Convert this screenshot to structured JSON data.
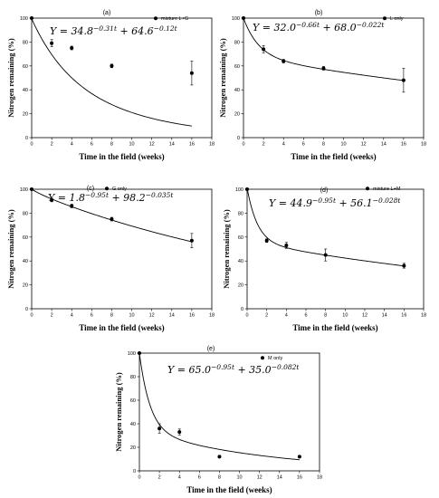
{
  "chart_data": [
    {
      "type": "scatter",
      "label": "(a)",
      "legend": "mixture L+G",
      "equation": {
        "lhs": "Y = 34.8",
        "exp1": "−0.31t",
        "mid": " + 64.6",
        "exp2": "−0.12t"
      },
      "model": {
        "a": 34.8,
        "b": 0.31,
        "c": 64.6,
        "d": 0.12
      },
      "xlabel": "Time in the field (weeks)",
      "ylabel": "Nitrogen remaining (%)",
      "xlim": [
        0,
        18
      ],
      "ylim": [
        0,
        100
      ],
      "xticks": [
        0,
        2,
        4,
        6,
        8,
        10,
        12,
        14,
        16,
        18
      ],
      "yticks": [
        0,
        20,
        40,
        60,
        80,
        100
      ],
      "points": [
        {
          "x": 0,
          "y": 100,
          "err": 0
        },
        {
          "x": 2,
          "y": 79,
          "err": 3
        },
        {
          "x": 4,
          "y": 75,
          "err": 1.5
        },
        {
          "x": 8,
          "y": 60,
          "err": 1.5
        },
        {
          "x": 16,
          "y": 54,
          "err": 10
        }
      ]
    },
    {
      "type": "scatter",
      "label": "(b)",
      "legend": "L only",
      "equation": {
        "lhs": "Y = 32.0",
        "exp1": "−0.66t",
        "mid": " + 68.0",
        "exp2": "−0.022t"
      },
      "model": {
        "a": 32.0,
        "b": 0.66,
        "c": 68.0,
        "d": 0.022
      },
      "xlabel": "Time in the field (weeks)",
      "ylabel": "Nitrogen remaining (%)",
      "xlim": [
        0,
        18
      ],
      "ylim": [
        0,
        100
      ],
      "xticks": [
        0,
        2,
        4,
        6,
        8,
        10,
        12,
        14,
        16,
        18
      ],
      "yticks": [
        0,
        20,
        40,
        60,
        80,
        100
      ],
      "points": [
        {
          "x": 0,
          "y": 100,
          "err": 0
        },
        {
          "x": 2,
          "y": 74,
          "err": 3
        },
        {
          "x": 4,
          "y": 64,
          "err": 1.5
        },
        {
          "x": 8,
          "y": 58,
          "err": 1.5
        },
        {
          "x": 16,
          "y": 48,
          "err": 10
        }
      ]
    },
    {
      "type": "scatter",
      "label": "(c)",
      "legend": "G only",
      "equation": {
        "lhs": "Y = 1.8",
        "exp1": "−0.95t",
        "mid": " + 98.2",
        "exp2": "−0.035t"
      },
      "model": {
        "a": 1.8,
        "b": 0.95,
        "c": 98.2,
        "d": 0.035
      },
      "xlabel": "Time in the field (weeks)",
      "ylabel": "Nitrogen remaining (%)",
      "xlim": [
        0,
        18
      ],
      "ylim": [
        0,
        100
      ],
      "xticks": [
        0,
        2,
        4,
        6,
        8,
        10,
        12,
        14,
        16,
        18
      ],
      "yticks": [
        0,
        20,
        40,
        60,
        80,
        100
      ],
      "points": [
        {
          "x": 0,
          "y": 100,
          "err": 0
        },
        {
          "x": 2,
          "y": 91,
          "err": 1.5
        },
        {
          "x": 4,
          "y": 86,
          "err": 1.5
        },
        {
          "x": 8,
          "y": 75,
          "err": 1.5
        },
        {
          "x": 16,
          "y": 57,
          "err": 6
        }
      ]
    },
    {
      "type": "scatter",
      "label": "(d)",
      "legend": "mixture L+M",
      "equation": {
        "lhs": "Y = 44.9",
        "exp1": "−0.95t",
        "mid": " + 56.1",
        "exp2": "−0.028t"
      },
      "model": {
        "a": 44.9,
        "b": 0.95,
        "c": 56.1,
        "d": 0.028
      },
      "xlabel": "Time in the field (weeks)",
      "ylabel": "Nitrogen remaining (%)",
      "xlim": [
        0,
        18
      ],
      "ylim": [
        0,
        100
      ],
      "xticks": [
        0,
        2,
        4,
        6,
        8,
        10,
        12,
        14,
        16,
        18
      ],
      "yticks": [
        0,
        20,
        40,
        60,
        80,
        100
      ],
      "points": [
        {
          "x": 0,
          "y": 100,
          "err": 0
        },
        {
          "x": 2,
          "y": 57,
          "err": 1.5
        },
        {
          "x": 4,
          "y": 53,
          "err": 2.5
        },
        {
          "x": 8,
          "y": 45,
          "err": 5
        },
        {
          "x": 16,
          "y": 36,
          "err": 2
        }
      ]
    },
    {
      "type": "scatter",
      "label": "(e)",
      "legend": "M only",
      "equation": {
        "lhs": "Y = 65.0",
        "exp1": "−0.95t",
        "mid": " + 35.0",
        "exp2": "−0.082t"
      },
      "model": {
        "a": 65.0,
        "b": 0.95,
        "c": 35.0,
        "d": 0.082
      },
      "xlabel": "Time in the field (weeks)",
      "ylabel": "Nitrogen remaining (%)",
      "xlim": [
        0,
        18
      ],
      "ylim": [
        0,
        100
      ],
      "xticks": [
        0,
        2,
        4,
        6,
        8,
        10,
        12,
        14,
        16,
        18
      ],
      "yticks": [
        0,
        20,
        40,
        60,
        80,
        100
      ],
      "points": [
        {
          "x": 0,
          "y": 100,
          "err": 0
        },
        {
          "x": 2,
          "y": 36,
          "err": 4
        },
        {
          "x": 4,
          "y": 33,
          "err": 2.5
        },
        {
          "x": 8,
          "y": 12,
          "err": 1
        },
        {
          "x": 16,
          "y": 12,
          "err": 1
        }
      ]
    }
  ]
}
